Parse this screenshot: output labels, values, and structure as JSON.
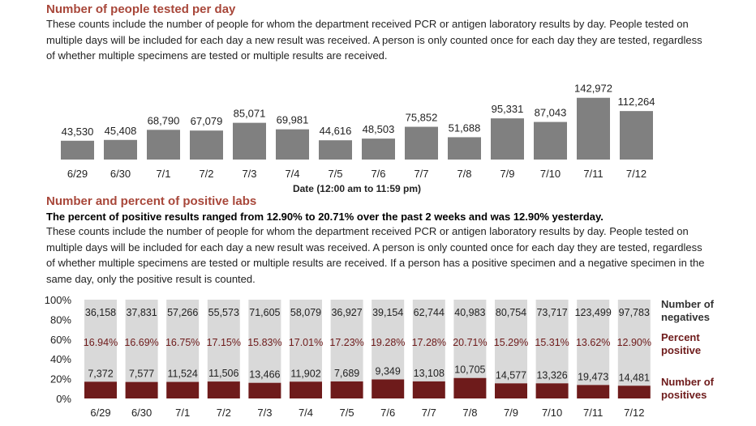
{
  "section1": {
    "title": "Number of people tested per day",
    "description": "These counts include the number of people for whom the department received PCR or antigen laboratory results by day. People tested on multiple days will be included for each day a new result was received. A person is only counted once for each day they are tested, regardless of whether multiple specimens are tested or multiple results are received."
  },
  "section2": {
    "title": "Number and percent of positive labs",
    "lead": "The percent of positive results ranged from 12.90% to 20.71% over the past 2 weeks and was 12.90% yesterday.",
    "description": "These counts include the number of people for whom the department received PCR or antigen laboratory results by day. People tested on multiple days will be included for each day a new result was received. A person is only counted once for each day they are tested, regardless of whether multiple specimens are tested or multiple results are received. If a person has a positive specimen and a negative specimen in the same day, only the positive result is counted."
  },
  "colors": {
    "title": "#a8473a",
    "bar_gray": "#808080",
    "negatives": "#d9d9d9",
    "positives": "#6e1b1b",
    "percent_text": "#6e1b1b"
  },
  "chart_data": [
    {
      "type": "bar",
      "title": "",
      "xlabel": "Date (12:00 am to 11:59 pm)",
      "ylabel": "",
      "categories": [
        "6/29",
        "6/30",
        "7/1",
        "7/2",
        "7/3",
        "7/4",
        "7/5",
        "7/6",
        "7/7",
        "7/8",
        "7/9",
        "7/10",
        "7/11",
        "7/12"
      ],
      "values": [
        43530,
        45408,
        68790,
        67079,
        85071,
        69981,
        44616,
        48503,
        75852,
        51688,
        95331,
        87043,
        142972,
        112264
      ],
      "value_labels": [
        "43,530",
        "45,408",
        "68,790",
        "67,079",
        "85,071",
        "69,981",
        "44,616",
        "48,503",
        "75,852",
        "51,688",
        "95,331",
        "87,043",
        "142,972",
        "112,264"
      ],
      "ylim": [
        0,
        150000
      ],
      "grid": false
    },
    {
      "type": "bar",
      "stacked": "percent",
      "title": "",
      "xlabel": "",
      "ylabel": "",
      "categories": [
        "6/29",
        "6/30",
        "7/1",
        "7/2",
        "7/3",
        "7/4",
        "7/5",
        "7/6",
        "7/7",
        "7/8",
        "7/9",
        "7/10",
        "7/11",
        "7/12"
      ],
      "yticks": [
        "0%",
        "20%",
        "40%",
        "60%",
        "80%",
        "100%"
      ],
      "ylim": [
        0,
        100
      ],
      "series": [
        {
          "name": "Number of positives",
          "values": [
            7372,
            7577,
            11524,
            11506,
            13466,
            11902,
            7689,
            9349,
            13108,
            10705,
            14577,
            13326,
            19473,
            14481
          ],
          "labels": [
            "7,372",
            "7,577",
            "11,524",
            "11,506",
            "13,466",
            "11,902",
            "7,689",
            "9,349",
            "13,108",
            "10,705",
            "14,577",
            "13,326",
            "19,473",
            "14,481"
          ]
        },
        {
          "name": "Number of negatives",
          "values": [
            36158,
            37831,
            57266,
            55573,
            71605,
            58079,
            36927,
            39154,
            62744,
            40983,
            80754,
            73717,
            123499,
            97783
          ],
          "labels": [
            "36,158",
            "37,831",
            "57,266",
            "55,573",
            "71,605",
            "58,079",
            "36,927",
            "39,154",
            "62,744",
            "40,983",
            "80,754",
            "73,717",
            "123,499",
            "97,783"
          ]
        }
      ],
      "percent_positive": {
        "name": "Percent positive",
        "values": [
          16.94,
          16.69,
          16.75,
          17.15,
          15.83,
          17.01,
          17.23,
          19.28,
          17.28,
          20.71,
          15.29,
          15.31,
          13.62,
          12.9
        ],
        "labels": [
          "16.94%",
          "16.69%",
          "16.75%",
          "17.15%",
          "15.83%",
          "17.01%",
          "17.23%",
          "19.28%",
          "17.28%",
          "20.71%",
          "15.29%",
          "15.31%",
          "13.62%",
          "12.90%"
        ]
      },
      "legend": [
        {
          "line1": "Number of",
          "line2": "negatives"
        },
        {
          "line1": "Percent",
          "line2": "positive"
        },
        {
          "line1": "Number of",
          "line2": "positives"
        }
      ],
      "legend_position": "right",
      "grid": false
    }
  ]
}
